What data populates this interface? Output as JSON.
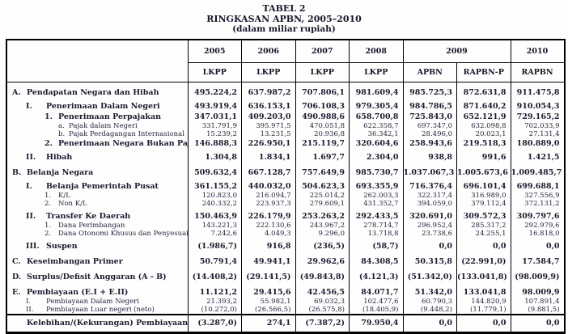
{
  "title": {
    "line1": "TABEL 2",
    "line2": "RINGKASAN APBN, 2005–2010",
    "line3": "(dalam miliar rupiah)"
  },
  "table": {
    "year_columns": [
      {
        "year": "2005"
      },
      {
        "year": "2006"
      },
      {
        "year": "2007"
      },
      {
        "year": "2008"
      },
      {
        "year": "2009"
      },
      {
        "year": "2010"
      }
    ],
    "sub_headers": [
      "LKPP",
      "LKPP",
      "LKPP",
      "LKPP",
      "APBN",
      "RAPBN-P",
      "RAPBN"
    ],
    "rows": [
      {
        "prefix": "A.",
        "label": "Pendapatan Negara dan Hibah",
        "indent": 0,
        "bold": true,
        "gap": "lg",
        "values": [
          "495.224,2",
          "637.987,2",
          "707.806,1",
          "981.609,4",
          "985.725,3",
          "872.631,8",
          "911.475,8"
        ]
      },
      {
        "prefix": "I.",
        "label": "Penerimaan Dalam Negeri",
        "indent": 1,
        "bold": true,
        "gap": "md",
        "values": [
          "493.919,4",
          "636.153,1",
          "706.108,3",
          "979.305,4",
          "984.786,5",
          "871.640,2",
          "910.054,3"
        ]
      },
      {
        "prefix": "1.",
        "label": "Penerimaan Perpajakan",
        "indent": 2,
        "bold": true,
        "gap": null,
        "values": [
          "347.031,1",
          "409.203,0",
          "490.988,6",
          "658.700,8",
          "725.843,0",
          "652.121,9",
          "729.165,2"
        ]
      },
      {
        "prefix": "a.",
        "label": "Pajak dalam Negeri",
        "indent": 3,
        "bold": false,
        "gap": null,
        "values": [
          "331.791,9",
          "395.971,5",
          "470.051,8",
          "622.358,7",
          "697.347,0",
          "632.098,8",
          "702.033,9"
        ]
      },
      {
        "prefix": "b.",
        "label": "Pajak Perdagangan Internasional",
        "indent": 3,
        "bold": false,
        "gap": null,
        "values": [
          "15.239,2",
          "13.231,5",
          "20.936,8",
          "36.342,1",
          "28.496,0",
          "20.023,1",
          "27.131,4"
        ]
      },
      {
        "prefix": "2.",
        "label": "Penerimaan Negara Bukan Pajak",
        "indent": 2,
        "bold": true,
        "gap": null,
        "values": [
          "146.888,3",
          "226.950,1",
          "215.119,7",
          "320.604,6",
          "258.943,6",
          "219.518,3",
          "180.889,0"
        ]
      },
      {
        "prefix": "II.",
        "label": "Hibah",
        "indent": 1,
        "bold": true,
        "gap": "md",
        "values": [
          "1.304,8",
          "1.834,1",
          "1.697,7",
          "2.304,0",
          "938,8",
          "991,6",
          "1.421,5"
        ]
      },
      {
        "prefix": "B.",
        "label": "Belanja Negara",
        "indent": 0,
        "bold": true,
        "gap": "lg",
        "values": [
          "509.632,4",
          "667.128,7",
          "757.649,9",
          "985.730,7",
          "1.037.067,3",
          "1.005.673,6",
          "1.009.485,7"
        ]
      },
      {
        "prefix": "I.",
        "label": "Belanja Pemerintah Pusat",
        "indent": 1,
        "bold": true,
        "gap": "md",
        "values": [
          "361.155,2",
          "440.032,0",
          "504.623,3",
          "693.355,9",
          "716.376,4",
          "696.101,4",
          "699.688,1"
        ]
      },
      {
        "prefix": "1.",
        "label": "K/L",
        "indent": 2,
        "bold": false,
        "gap": null,
        "values": [
          "120.823,0",
          "216.094,7",
          "225.014,2",
          "262.003,3",
          "322.317,4",
          "316.989,0",
          "327.556,9"
        ]
      },
      {
        "prefix": "2.",
        "label": "Non K/L",
        "indent": 2,
        "bold": false,
        "gap": null,
        "values": [
          "240.332,2",
          "223.937,3",
          "279.609,1",
          "431.352,7",
          "394.059,0",
          "379.112,4",
          "372.131,2"
        ]
      },
      {
        "prefix": "II.",
        "label": "Transfer Ke Daerah",
        "indent": 1,
        "bold": true,
        "gap": "md",
        "values": [
          "150.463,9",
          "226.179,9",
          "253.263,2",
          "292.433,5",
          "320.691,0",
          "309.572,3",
          "309.797,6"
        ]
      },
      {
        "prefix": "1.",
        "label": "Dana Perimbangan",
        "indent": 2,
        "bold": false,
        "gap": null,
        "values": [
          "143.221,3",
          "222.130,6",
          "243.967,2",
          "278.714,7",
          "296.952,4",
          "285.317,2",
          "292.979,6"
        ]
      },
      {
        "prefix": "2.",
        "label": "Dana Otonomi Khusus dan Penyesuaian",
        "indent": 2,
        "bold": false,
        "gap": null,
        "values": [
          "7.242,6",
          "4.049,3",
          "9.296,0",
          "13.718,8",
          "23.738,6",
          "24.255,1",
          "16.818,0"
        ]
      },
      {
        "prefix": "III.",
        "label": "Suspen",
        "indent": 1,
        "bold": true,
        "gap": "md",
        "values": [
          "(1.986,7)",
          "916,8",
          "(236,5)",
          "(58,7)",
          "0,0",
          "0,0",
          "0,0"
        ]
      },
      {
        "prefix": "C.",
        "label": "Keseimbangan Primer",
        "indent": 0,
        "bold": true,
        "gap": "lg",
        "values": [
          "50.791,4",
          "49.941,1",
          "29.962,6",
          "84.308,5",
          "50.315,8",
          "(22.991,0)",
          "17.584,7"
        ]
      },
      {
        "prefix": "D.",
        "label": "Surplus/Defisit Anggaran  (A - B)",
        "indent": 0,
        "bold": true,
        "gap": "lg",
        "values": [
          "(14.408,2)",
          "(29.141,5)",
          "(49.843,8)",
          "(4.121,3)",
          "(51.342,0)",
          "(133.041,8)",
          "(98.009,9)"
        ]
      },
      {
        "prefix": "E.",
        "label": "Pembiayaan (E.I + E.II)",
        "indent": 0,
        "bold": true,
        "gap": "lg",
        "values": [
          "11.121,2",
          "29.415,6",
          "42.456,5",
          "84.071,7",
          "51.342,0",
          "133.041,8",
          "98.009,9"
        ]
      },
      {
        "prefix": "I.",
        "label": "Pembiayaan Dalam Negeri",
        "indent": 1,
        "bold": false,
        "gap": null,
        "values": [
          "21.393,2",
          "55.982,1",
          "69.032,3",
          "102.477,6",
          "60.790,3",
          "144.820,9",
          "107.891,4"
        ]
      },
      {
        "prefix": "II.",
        "label": "Pembiayaan Luar negeri (neto)",
        "indent": 1,
        "bold": false,
        "gap": null,
        "values": [
          "(10.272,0)",
          "(26.566,5)",
          "(26.575,8)",
          "(18.405,9)",
          "(9.448,2)",
          "(11.779,1)",
          "(9.881,5)"
        ]
      },
      {
        "prefix": "",
        "label": "Kelebihan/(Kekurangan) Pembiayaan",
        "indent": 0,
        "bold": true,
        "gap": null,
        "total": true,
        "values": [
          "(3.287,0)",
          "274,1",
          "(7.387,2)",
          "79.950,4",
          "0,0",
          "0,0",
          "0,0"
        ]
      }
    ]
  }
}
